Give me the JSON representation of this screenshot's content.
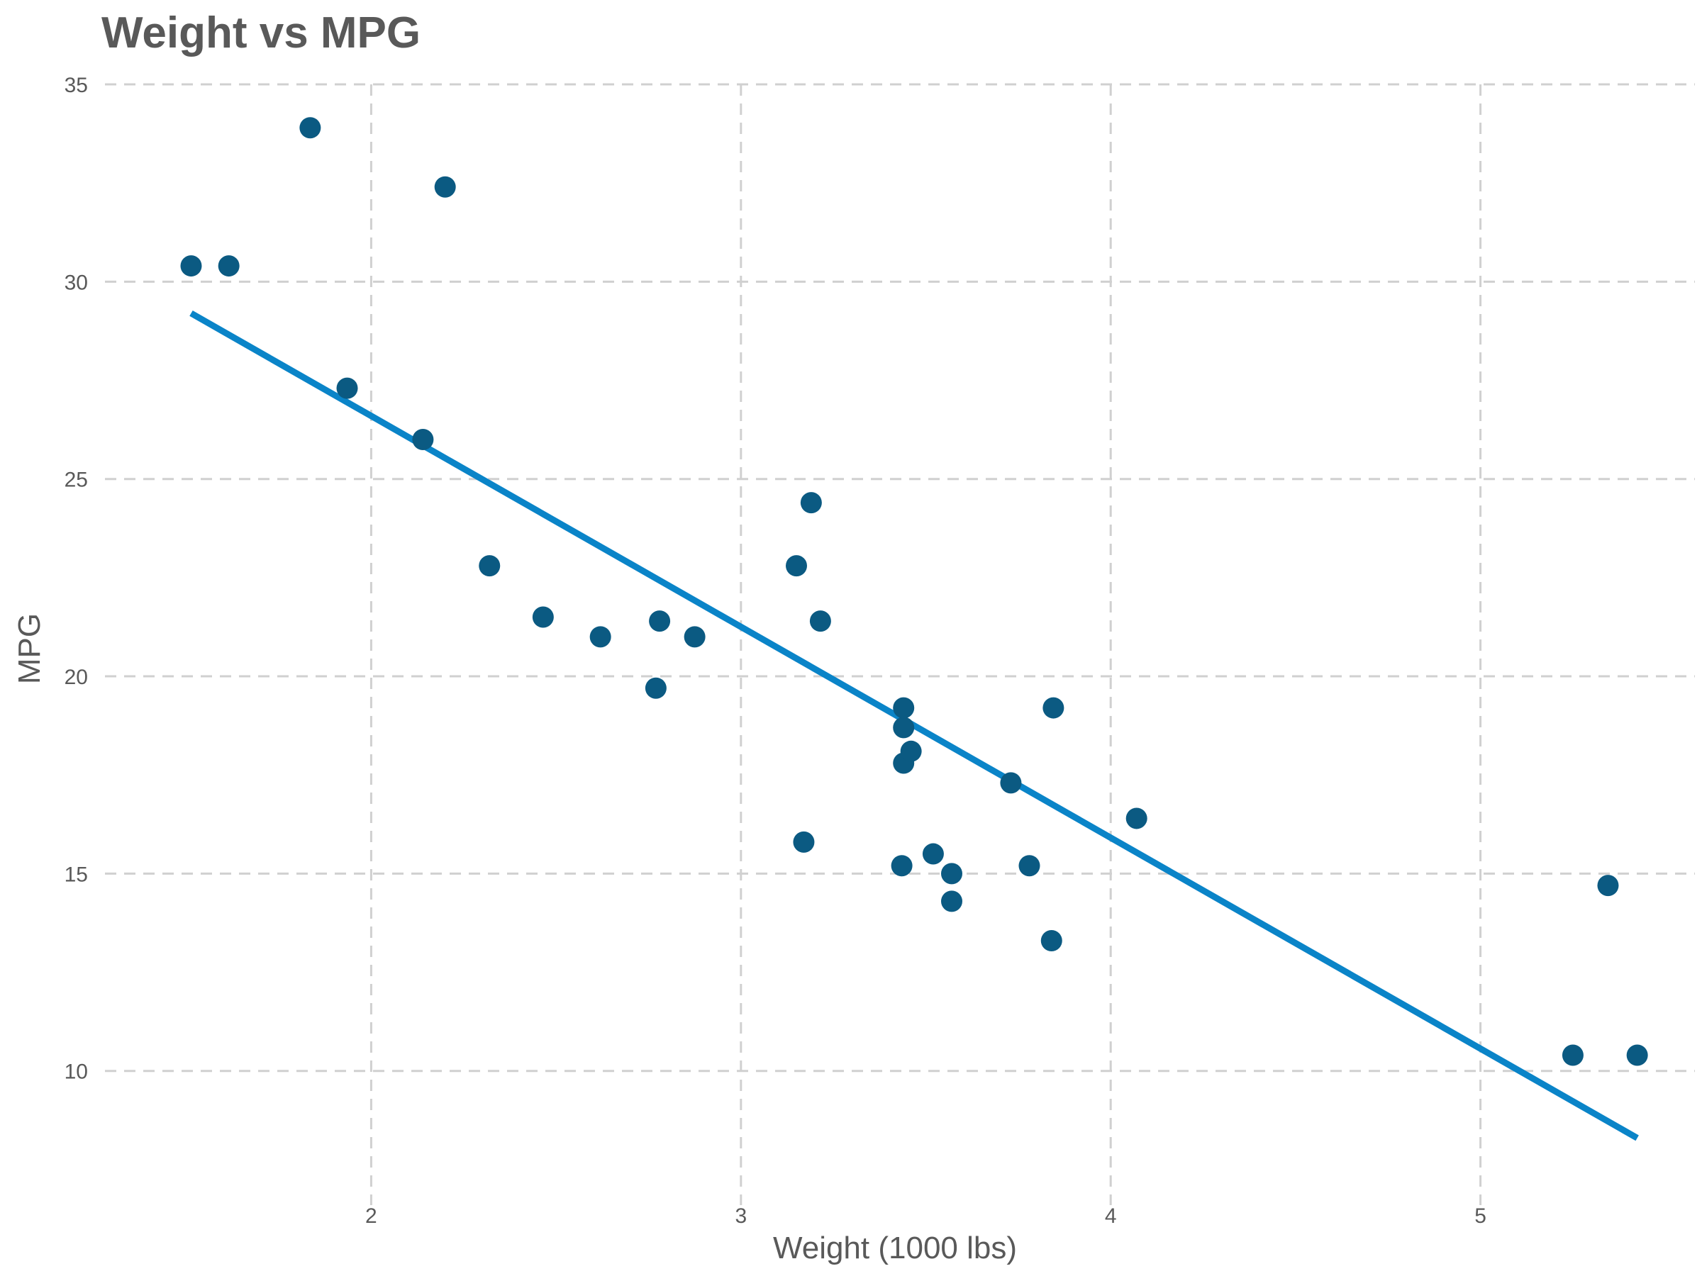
{
  "chart_data": {
    "type": "scatter",
    "title": "Weight vs MPG",
    "xlabel": "Weight (1000 lbs)",
    "ylabel": "MPG",
    "xlim": [
      1.28,
      5.58
    ],
    "ylim": [
      6.6,
      35
    ],
    "x_ticks": [
      2,
      3,
      4,
      5
    ],
    "y_ticks": [
      10,
      15,
      20,
      25,
      30,
      35
    ],
    "grid": true,
    "legend": "none",
    "series": [
      {
        "points": [
          {
            "x": 1.513,
            "y": 30.4
          },
          {
            "x": 1.615,
            "y": 30.4
          },
          {
            "x": 1.835,
            "y": 33.9
          },
          {
            "x": 1.935,
            "y": 27.3
          },
          {
            "x": 2.14,
            "y": 26.0
          },
          {
            "x": 2.2,
            "y": 32.4
          },
          {
            "x": 2.32,
            "y": 22.8
          },
          {
            "x": 2.465,
            "y": 21.5
          },
          {
            "x": 2.62,
            "y": 21.0
          },
          {
            "x": 2.77,
            "y": 19.7
          },
          {
            "x": 2.78,
            "y": 21.4
          },
          {
            "x": 2.875,
            "y": 21.0
          },
          {
            "x": 3.15,
            "y": 22.8
          },
          {
            "x": 3.17,
            "y": 15.8
          },
          {
            "x": 3.19,
            "y": 24.4
          },
          {
            "x": 3.215,
            "y": 21.4
          },
          {
            "x": 3.435,
            "y": 15.2
          },
          {
            "x": 3.44,
            "y": 18.7
          },
          {
            "x": 3.44,
            "y": 19.2
          },
          {
            "x": 3.44,
            "y": 17.8
          },
          {
            "x": 3.46,
            "y": 18.1
          },
          {
            "x": 3.52,
            "y": 15.5
          },
          {
            "x": 3.57,
            "y": 15.0
          },
          {
            "x": 3.57,
            "y": 14.3
          },
          {
            "x": 3.73,
            "y": 17.3
          },
          {
            "x": 3.78,
            "y": 15.2
          },
          {
            "x": 3.84,
            "y": 13.3
          },
          {
            "x": 3.845,
            "y": 19.2
          },
          {
            "x": 4.07,
            "y": 16.4
          },
          {
            "x": 5.25,
            "y": 10.4
          },
          {
            "x": 5.345,
            "y": 14.7
          },
          {
            "x": 5.424,
            "y": 10.4
          }
        ]
      }
    ],
    "trend_line": {
      "x": [
        1.513,
        5.424
      ],
      "y": [
        29.2,
        8.3
      ]
    },
    "colors": {
      "points": "#0b5a82",
      "trend_line": "#0a84c8",
      "grid": "#d0d0d0",
      "text": "#595959"
    }
  }
}
